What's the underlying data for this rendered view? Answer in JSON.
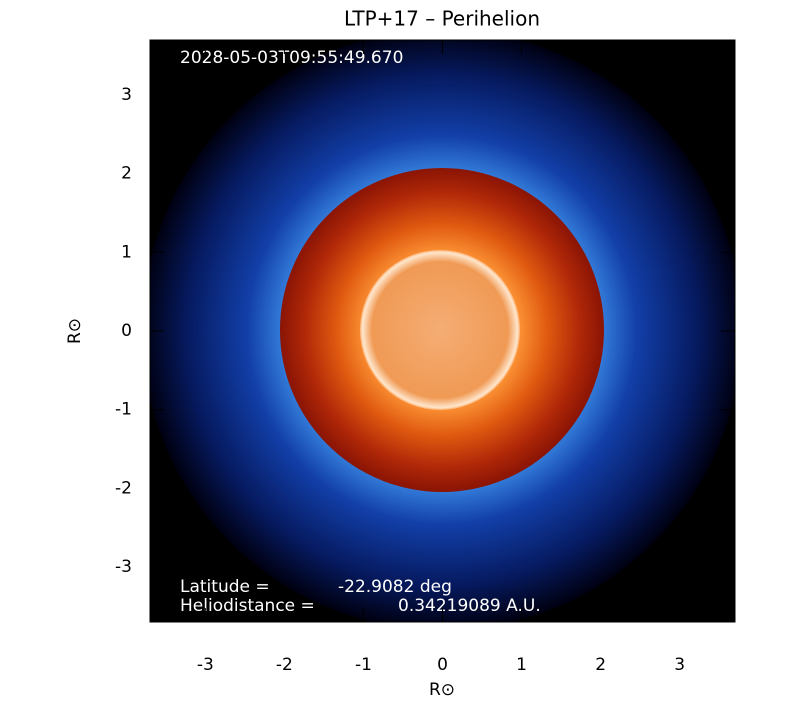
{
  "chart_data": {
    "type": "image",
    "title": "LTP+17 – Perihelion",
    "timestamp": "2028-05-03T09:55:49.670",
    "annotations": [
      {
        "label": "Latitude =",
        "value": "-22.9082 deg"
      },
      {
        "label": "Heliodistance =",
        "value": "0.34219089 A.U."
      }
    ],
    "xlabel": "R⊙",
    "ylabel": "R⊙",
    "xlim": [
      -3.7,
      3.7
    ],
    "ylim": [
      -3.7,
      3.7
    ],
    "xticks": [
      -3,
      -2,
      -1,
      0,
      1,
      2,
      3
    ],
    "yticks": [
      -3,
      -2,
      -1,
      0,
      1,
      2,
      3
    ]
  }
}
